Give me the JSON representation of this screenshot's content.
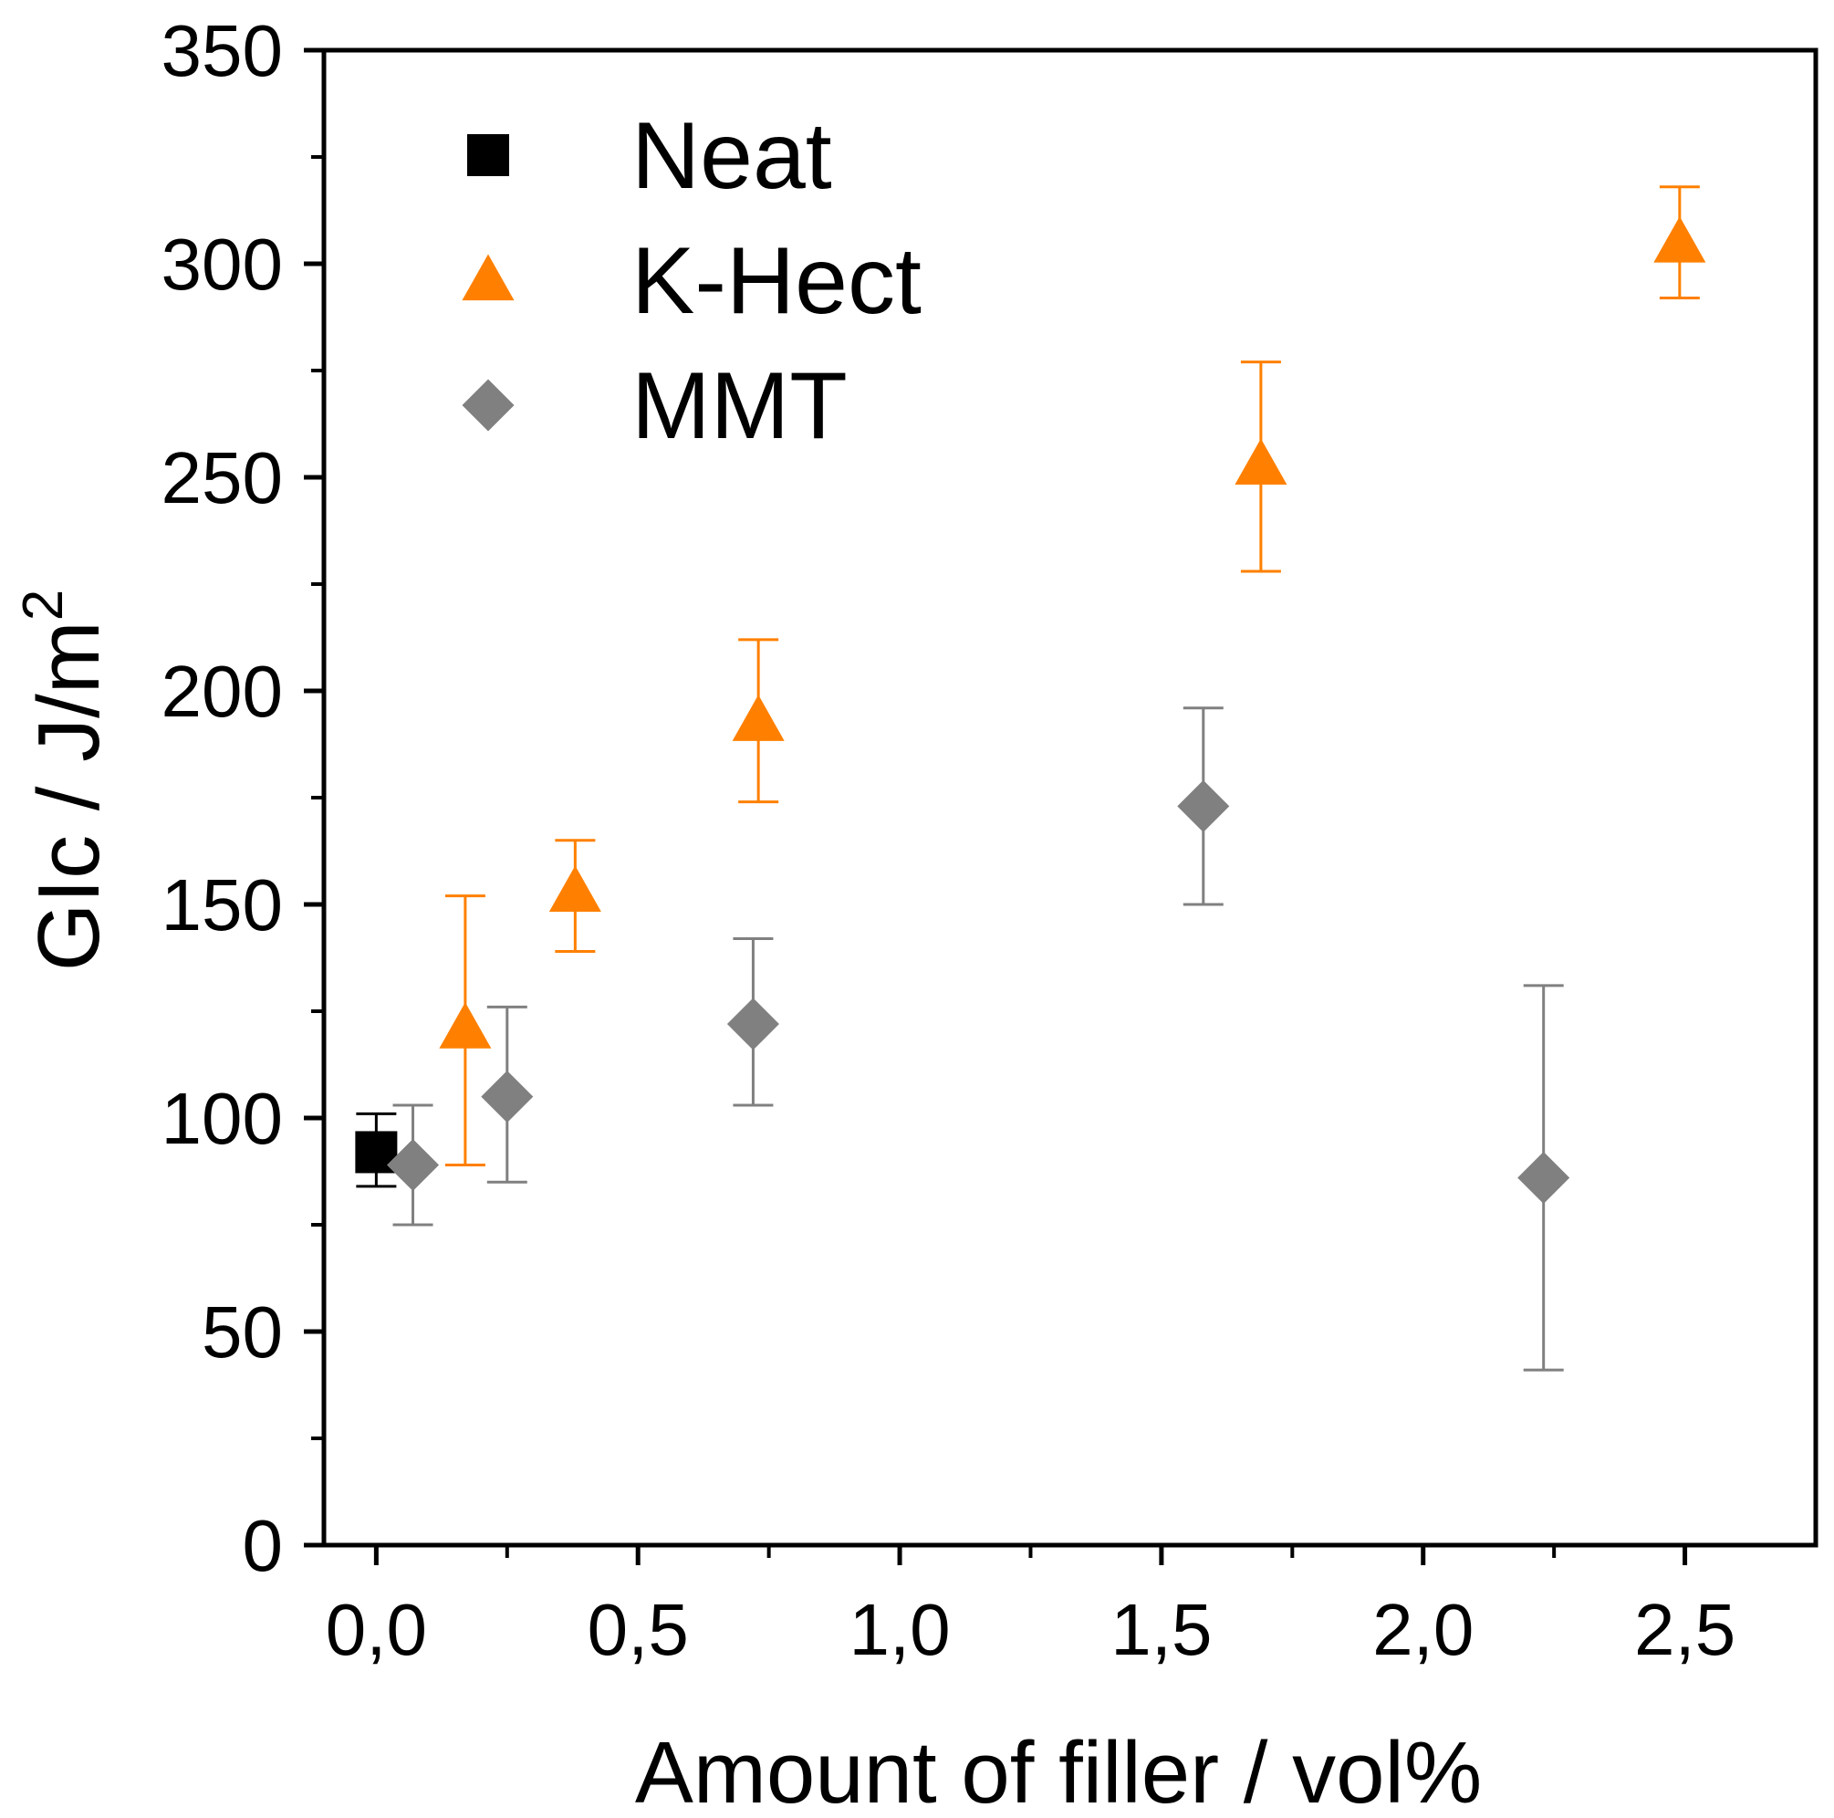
{
  "chart_data": {
    "type": "scatter",
    "xlabel": "Amount of filler / vol%",
    "ylabel": "GIc / J/m",
    "ylabel_superscript": "2",
    "xlim": [
      -0.1,
      2.75
    ],
    "ylim": [
      0,
      350
    ],
    "x_major_ticks": [
      0,
      0.5,
      1.0,
      1.5,
      2.0,
      2.5
    ],
    "x_tick_labels": [
      "0,0",
      "0,5",
      "1,0",
      "1,5",
      "2,0",
      "2,5"
    ],
    "x_minor_ticks": [
      0.25,
      0.75,
      1.25,
      1.75,
      2.25
    ],
    "y_major_ticks": [
      0,
      50,
      100,
      150,
      200,
      250,
      300,
      350
    ],
    "y_tick_labels": [
      "0",
      "50",
      "100",
      "150",
      "200",
      "250",
      "300",
      "350"
    ],
    "y_minor_ticks": [
      25,
      75,
      125,
      175,
      225,
      275,
      325
    ],
    "grid": false,
    "legend_position": "top-left",
    "series": [
      {
        "name": "Neat",
        "marker": "square",
        "color": "#000000",
        "points": [
          {
            "x": 0.0,
            "y": 92,
            "err_low": 8,
            "err_high": 9
          }
        ]
      },
      {
        "name": "K-Hect",
        "marker": "triangle",
        "color": "#ff8000",
        "points": [
          {
            "x": 0.17,
            "y": 121,
            "err_low": 32,
            "err_high": 31
          },
          {
            "x": 0.38,
            "y": 153,
            "err_low": 14,
            "err_high": 12
          },
          {
            "x": 0.73,
            "y": 193,
            "err_low": 19,
            "err_high": 19
          },
          {
            "x": 1.69,
            "y": 253,
            "err_low": 25,
            "err_high": 24
          },
          {
            "x": 2.49,
            "y": 305,
            "err_low": 13,
            "err_high": 13
          }
        ]
      },
      {
        "name": "MMT",
        "marker": "diamond",
        "color": "#808080",
        "points": [
          {
            "x": 0.07,
            "y": 89,
            "err_low": 14,
            "err_high": 14
          },
          {
            "x": 0.25,
            "y": 105,
            "err_low": 20,
            "err_high": 21
          },
          {
            "x": 0.72,
            "y": 122,
            "err_low": 19,
            "err_high": 20
          },
          {
            "x": 1.58,
            "y": 173,
            "err_low": 23,
            "err_high": 23
          },
          {
            "x": 2.23,
            "y": 86,
            "err_low": 45,
            "err_high": 45
          }
        ]
      }
    ]
  }
}
